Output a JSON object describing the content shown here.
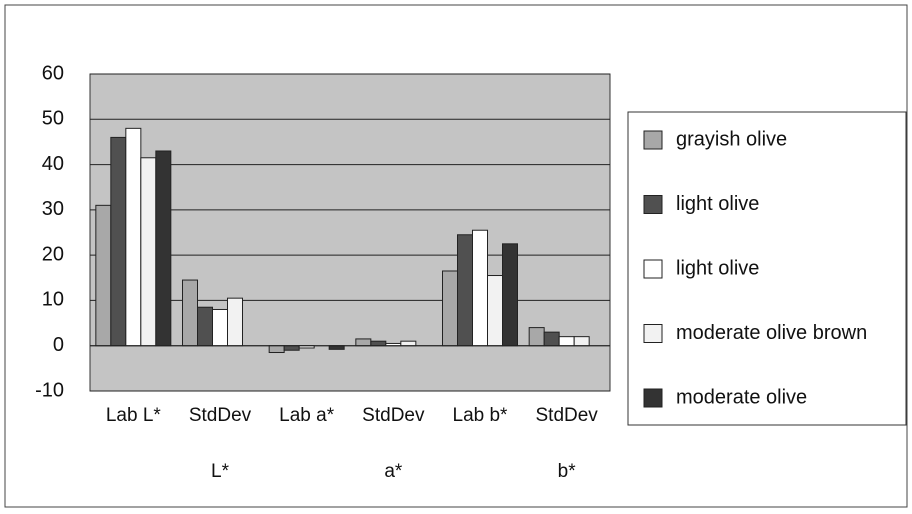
{
  "chart_data": {
    "type": "bar",
    "categories": [
      "Lab L*",
      "StdDev L*",
      "Lab a*",
      "StdDev a*",
      "Lab b*",
      "StdDev b*"
    ],
    "series": [
      {
        "name": "grayish olive",
        "color": "#a8a8a8",
        "values": [
          31,
          14.5,
          -1.5,
          1.5,
          16.5,
          4
        ]
      },
      {
        "name": "light olive",
        "color": "#505050",
        "values": [
          46,
          8.5,
          -1,
          1,
          24.5,
          3
        ]
      },
      {
        "name": "light olive",
        "color": "#ffffff",
        "values": [
          48,
          8,
          -0.5,
          0.5,
          25.5,
          2
        ]
      },
      {
        "name": "moderate olive brown",
        "color": "#f2f2f2",
        "values": [
          41.5,
          10.5,
          null,
          1,
          15.5,
          2
        ]
      },
      {
        "name": "moderate olive",
        "color": "#333333",
        "values": [
          43,
          null,
          -0.8,
          null,
          22.5,
          null
        ]
      }
    ],
    "ylim": [
      -10,
      60
    ],
    "yticks": [
      -10,
      0,
      10,
      20,
      30,
      40,
      50,
      60
    ],
    "grid": true,
    "legend": "right"
  }
}
